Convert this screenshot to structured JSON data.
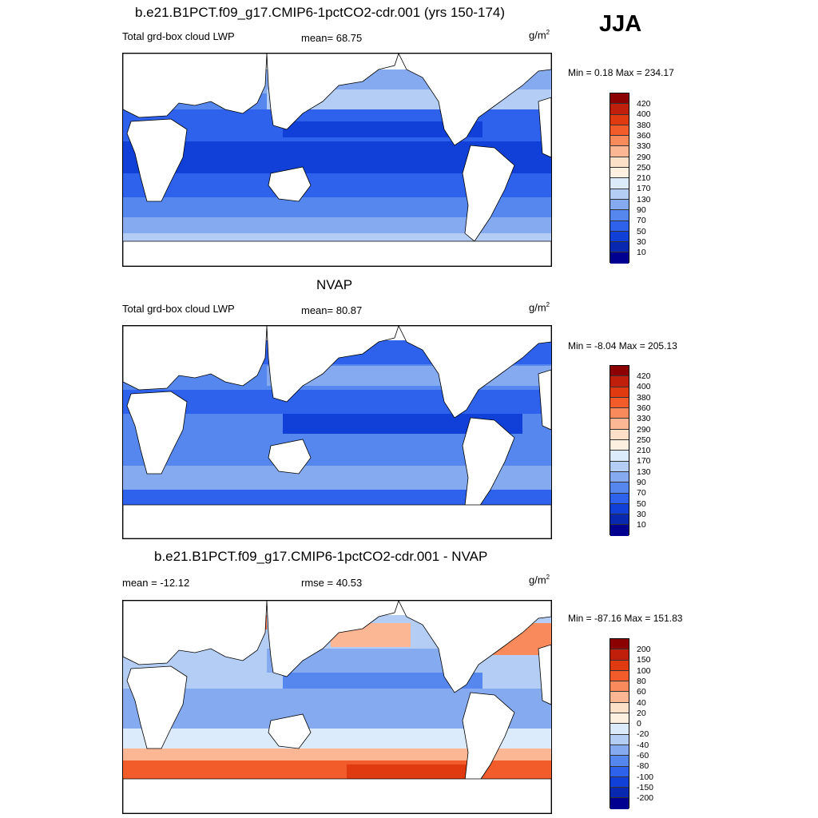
{
  "season": "JJA",
  "panels": [
    {
      "title": "b.e21.B1PCT.f09_g17.CMIP6-1pctCO2-cdr.001 (yrs 150-174)",
      "left_label": "Total grd-box cloud LWP",
      "stat": "mean=  68.75",
      "units": "g/m",
      "units_exp": "2",
      "minmax": "Min =   0.18 Max = 234.17",
      "levels": [
        "420",
        "400",
        "380",
        "360",
        "330",
        "290",
        "250",
        "210",
        "170",
        "130",
        "90",
        "70",
        "50",
        "30",
        "10"
      ]
    },
    {
      "title": "NVAP",
      "left_label": "Total grd-box cloud LWP",
      "stat": "mean=  80.87",
      "units": "g/m",
      "units_exp": "2",
      "minmax": "Min =  -8.04 Max = 205.13",
      "levels": [
        "420",
        "400",
        "380",
        "360",
        "330",
        "290",
        "250",
        "210",
        "170",
        "130",
        "90",
        "70",
        "50",
        "30",
        "10"
      ]
    },
    {
      "title": "b.e21.B1PCT.f09_g17.CMIP6-1pctCO2-cdr.001 - NVAP",
      "left_label": "mean = -12.12",
      "stat": "rmse =  40.53",
      "units": "g/m",
      "units_exp": "2",
      "minmax": "Min = -87.16 Max = 151.83",
      "levels": [
        "200",
        "150",
        "100",
        "80",
        "60",
        "40",
        "20",
        "0",
        "-20",
        "-40",
        "-60",
        "-80",
        "-100",
        "-150",
        "-200"
      ]
    }
  ],
  "colors": {
    "abs_scale": [
      "#8b0000",
      "#c0200b",
      "#e03a10",
      "#f25c2a",
      "#f88a5c",
      "#fbb694",
      "#fde0c8",
      "#fdf0e0",
      "#dcebfb",
      "#b3cdf5",
      "#86aaf0",
      "#5587ee",
      "#2f62ec",
      "#1040d8",
      "#0828b0",
      "#000090"
    ],
    "diff_scale": [
      "#8b0000",
      "#c0200b",
      "#e03a10",
      "#f25c2a",
      "#f88a5c",
      "#fbb694",
      "#fde0c8",
      "#fdf0e0",
      "#dcebfb",
      "#b3cdf5",
      "#86aaf0",
      "#5587ee",
      "#2f62ec",
      "#1040d8",
      "#0828b0",
      "#000090"
    ]
  }
}
